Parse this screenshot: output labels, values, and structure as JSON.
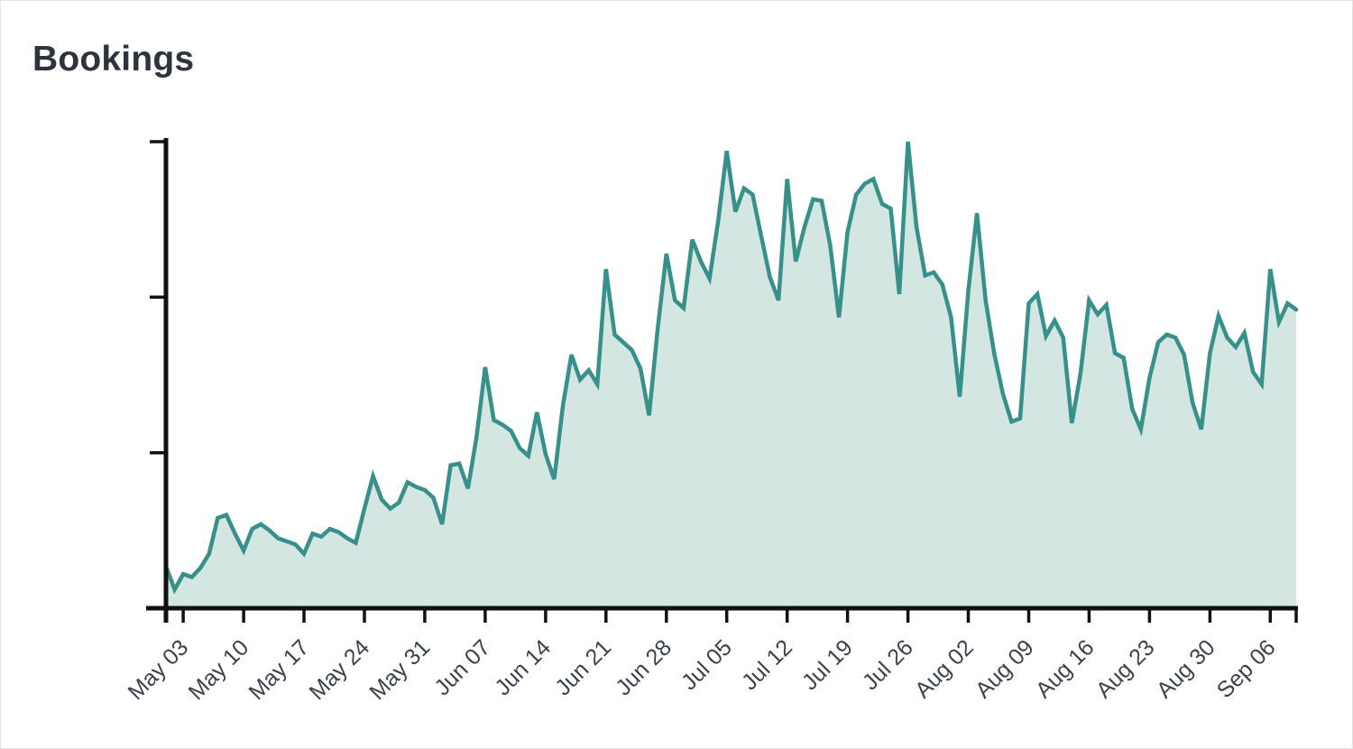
{
  "page": {
    "title": "Bookings"
  },
  "colors": {
    "line": "#379089",
    "fill": "#d3e6e2",
    "axis": "#111111",
    "tick_label": "#3c424d",
    "title": "#2e333d"
  },
  "chart_data": {
    "type": "area",
    "title": "Bookings",
    "x_unit": "day",
    "x_start_label": "May 01",
    "x_end_label": "Sep 09",
    "x_tick_labels": [
      "May 03",
      "May 10",
      "May 17",
      "May 24",
      "May 31",
      "Jun 07",
      "Jun 14",
      "Jun 21",
      "Jun 28",
      "Jul 05",
      "Jul 12",
      "Jul 19",
      "Jul 26",
      "Aug 02",
      "Aug 09",
      "Aug 16",
      "Aug 23",
      "Aug 30",
      "Sep 06"
    ],
    "x_tick_day_indices": [
      2,
      9,
      16,
      23,
      30,
      37,
      44,
      51,
      58,
      65,
      72,
      79,
      86,
      93,
      100,
      107,
      114,
      121,
      128
    ],
    "y_axis": {
      "min": 0,
      "max": 157,
      "tick_values": [
        50,
        100,
        150
      ],
      "labels_shown": false
    },
    "grid": false,
    "legend": false,
    "series": [
      {
        "name": "Bookings",
        "values": [
          13.5,
          6,
          11,
          10,
          13,
          17.5,
          29,
          30,
          24,
          18.5,
          25.5,
          27,
          25,
          22.5,
          21.5,
          20.5,
          17.5,
          24,
          23,
          25.5,
          24.5,
          22.5,
          21,
          32,
          42.5,
          35,
          32,
          34,
          40.5,
          39,
          38,
          35.5,
          27,
          46,
          46.5,
          38.5,
          55,
          77.5,
          60.5,
          59,
          57,
          51.5,
          49,
          63,
          49.5,
          41.5,
          65,
          81.5,
          73.5,
          76.5,
          72,
          109,
          88,
          85.5,
          83,
          77,
          62,
          90,
          114,
          99,
          96.5,
          118.5,
          111.5,
          106,
          124.5,
          147,
          127.5,
          135,
          133,
          119.5,
          106.5,
          99,
          138,
          111.5,
          122.5,
          131.5,
          131,
          116.5,
          93.5,
          121,
          133,
          136.5,
          138,
          130,
          128.5,
          101,
          150,
          122.5,
          107,
          108,
          104,
          93.5,
          68,
          102,
          127,
          99,
          82,
          69,
          60,
          61,
          98,
          101,
          87.5,
          92.5,
          87,
          59.5,
          75.5,
          99,
          94.5,
          97.5,
          82,
          80.5,
          64,
          57.5,
          74,
          85.5,
          88,
          87,
          81.5,
          66,
          57.5,
          82,
          94,
          87,
          84,
          88.5,
          76,
          72,
          109,
          92,
          98,
          96
        ]
      }
    ]
  }
}
